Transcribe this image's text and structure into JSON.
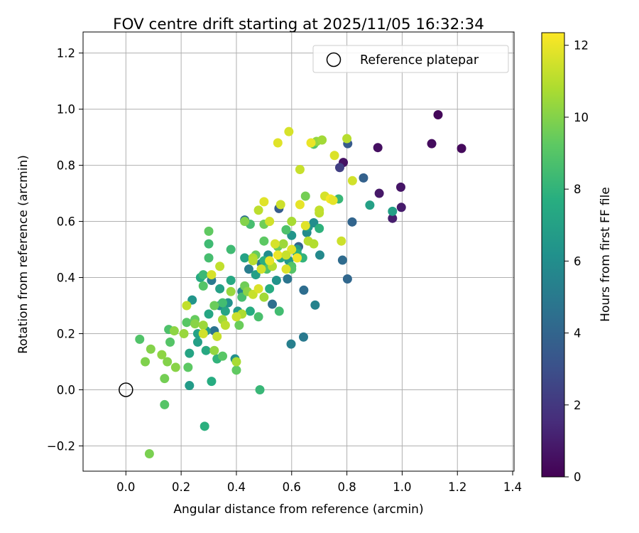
{
  "chart_data": {
    "type": "scatter",
    "title": "FOV centre drift starting at 2025/11/05 16:32:34",
    "xlabel": "Angular distance from reference (arcmin)",
    "ylabel": "Rotation from reference (arcmin)",
    "xlim": [
      -0.155,
      1.405
    ],
    "ylim": [
      -0.29,
      1.275
    ],
    "xticks": [
      0.0,
      0.2,
      0.4,
      0.6,
      0.8,
      1.0,
      1.2,
      1.4
    ],
    "xtick_labels": [
      "0.0",
      "0.2",
      "0.4",
      "0.6",
      "0.8",
      "1.0",
      "1.2",
      "1.4"
    ],
    "yticks": [
      -0.2,
      0.0,
      0.2,
      0.4,
      0.6,
      0.8,
      1.0,
      1.2
    ],
    "ytick_labels": [
      "−0.2",
      "0.0",
      "0.2",
      "0.4",
      "0.6",
      "0.8",
      "1.0",
      "1.2"
    ],
    "grid": true,
    "legend": {
      "position": "top-right",
      "entries": [
        "Reference platepar"
      ]
    },
    "reference": {
      "x": 0.0,
      "y": 0.0,
      "label": "Reference platepar"
    },
    "colorbar": {
      "label": "Hours from first FF file",
      "range": [
        0,
        12.35
      ],
      "ticks": [
        0,
        2,
        4,
        6,
        8,
        10,
        12
      ],
      "tick_labels": [
        "0",
        "2",
        "4",
        "6",
        "8",
        "10",
        "12"
      ],
      "colormap": "viridis"
    },
    "points": [
      [
        1.13,
        0.98,
        0.2
      ],
      [
        1.215,
        0.86,
        0.3
      ],
      [
        1.107,
        0.877,
        0.4
      ],
      [
        0.912,
        0.863,
        0.5
      ],
      [
        0.787,
        0.81,
        0.6
      ],
      [
        0.995,
        0.722,
        0.7
      ],
      [
        0.917,
        0.7,
        0.8
      ],
      [
        0.997,
        0.65,
        0.9
      ],
      [
        0.965,
        0.611,
        1.0
      ],
      [
        0.774,
        0.792,
        2.3
      ],
      [
        0.803,
        0.877,
        3.5
      ],
      [
        0.86,
        0.755,
        3.8
      ],
      [
        0.819,
        0.598,
        4.0
      ],
      [
        0.802,
        0.395,
        4.1
      ],
      [
        0.784,
        0.462,
        4.3
      ],
      [
        0.644,
        0.355,
        4.4
      ],
      [
        0.643,
        0.188,
        5.0
      ],
      [
        0.598,
        0.163,
        5.3
      ],
      [
        0.685,
        0.302,
        5.5
      ],
      [
        0.702,
        0.48,
        5.8
      ],
      [
        0.655,
        0.56,
        5.9
      ],
      [
        0.554,
        0.646,
        3.6
      ],
      [
        0.625,
        0.51,
        4.0
      ],
      [
        0.585,
        0.395,
        4.8
      ],
      [
        0.53,
        0.305,
        4.5
      ],
      [
        0.49,
        0.45,
        4.9
      ],
      [
        0.43,
        0.605,
        4.6
      ],
      [
        0.445,
        0.43,
        5.2
      ],
      [
        0.42,
        0.35,
        5.6
      ],
      [
        0.395,
        0.11,
        6.1
      ],
      [
        0.32,
        0.21,
        4.7
      ],
      [
        0.31,
        0.39,
        5.0
      ],
      [
        0.34,
        0.3,
        5.9
      ],
      [
        0.37,
        0.31,
        6.2
      ],
      [
        0.405,
        0.28,
        6.6
      ],
      [
        0.515,
        0.48,
        6.0
      ],
      [
        0.545,
        0.39,
        6.3
      ],
      [
        0.6,
        0.55,
        6.4
      ],
      [
        0.66,
        0.58,
        6.6
      ],
      [
        0.68,
        0.595,
        6.0
      ],
      [
        0.59,
        0.46,
        6.5
      ],
      [
        0.62,
        0.5,
        6.7
      ],
      [
        0.965,
        0.636,
        6.9
      ],
      [
        0.883,
        0.658,
        7.0
      ],
      [
        0.24,
        0.32,
        6.4
      ],
      [
        0.23,
        0.015,
        6.7
      ],
      [
        0.26,
        0.17,
        6.9
      ],
      [
        0.26,
        0.2,
        7.1
      ],
      [
        0.23,
        0.13,
        7.2
      ],
      [
        0.29,
        0.21,
        6.8
      ],
      [
        0.29,
        0.14,
        7.4
      ],
      [
        0.31,
        0.03,
        7.6
      ],
      [
        0.3,
        0.27,
        7.3
      ],
      [
        0.27,
        0.4,
        7.5
      ],
      [
        0.34,
        0.36,
        7.0
      ],
      [
        0.36,
        0.28,
        7.2
      ],
      [
        0.38,
        0.39,
        7.4
      ],
      [
        0.43,
        0.47,
        7.1
      ],
      [
        0.45,
        0.28,
        7.6
      ],
      [
        0.47,
        0.41,
        6.9
      ],
      [
        0.5,
        0.46,
        7.8
      ],
      [
        0.52,
        0.36,
        7.6
      ],
      [
        0.56,
        0.47,
        7.2
      ],
      [
        0.58,
        0.57,
        7.5
      ],
      [
        0.62,
        0.485,
        7.8
      ],
      [
        0.64,
        0.47,
        8.0
      ],
      [
        0.7,
        0.575,
        7.9
      ],
      [
        0.77,
        0.68,
        8.2
      ],
      [
        0.285,
        -0.13,
        7.8
      ],
      [
        0.485,
        0.0,
        8.2
      ],
      [
        0.33,
        0.11,
        8.0
      ],
      [
        0.3,
        0.52,
        8.4
      ],
      [
        0.3,
        0.47,
        8.6
      ],
      [
        0.28,
        0.41,
        8.3
      ],
      [
        0.35,
        0.31,
        8.5
      ],
      [
        0.38,
        0.5,
        8.4
      ],
      [
        0.42,
        0.33,
        8.6
      ],
      [
        0.45,
        0.59,
        8.6
      ],
      [
        0.48,
        0.26,
        8.7
      ],
      [
        0.51,
        0.43,
        8.8
      ],
      [
        0.555,
        0.28,
        8.5
      ],
      [
        0.58,
        0.57,
        8.8
      ],
      [
        0.6,
        0.44,
        8.9
      ],
      [
        0.05,
        0.18,
        8.9
      ],
      [
        0.14,
        -0.053,
        9.0
      ],
      [
        0.155,
        0.215,
        8.8
      ],
      [
        0.16,
        0.17,
        9.0
      ],
      [
        0.22,
        0.24,
        9.1
      ],
      [
        0.225,
        0.08,
        9.2
      ],
      [
        0.25,
        0.25,
        9.4
      ],
      [
        0.28,
        0.37,
        9.0
      ],
      [
        0.3,
        0.565,
        9.3
      ],
      [
        0.32,
        0.3,
        9.5
      ],
      [
        0.35,
        0.12,
        9.1
      ],
      [
        0.4,
        0.07,
        9.3
      ],
      [
        0.41,
        0.23,
        9.5
      ],
      [
        0.43,
        0.37,
        9.6
      ],
      [
        0.47,
        0.48,
        9.4
      ],
      [
        0.5,
        0.53,
        9.2
      ],
      [
        0.5,
        0.59,
        9.6
      ],
      [
        0.55,
        0.51,
        9.5
      ],
      [
        0.6,
        0.43,
        9.0
      ],
      [
        0.65,
        0.69,
        9.7
      ],
      [
        0.68,
        0.875,
        9.0
      ],
      [
        0.69,
        0.885,
        10.3
      ],
      [
        0.085,
        -0.228,
        9.8
      ],
      [
        0.07,
        0.1,
        9.9
      ],
      [
        0.14,
        0.04,
        9.7
      ],
      [
        0.15,
        0.1,
        10.0
      ],
      [
        0.18,
        0.08,
        10.1
      ],
      [
        0.13,
        0.125,
        10.2
      ],
      [
        0.09,
        0.145,
        10.0
      ],
      [
        0.175,
        0.21,
        10.2
      ],
      [
        0.21,
        0.2,
        10.4
      ],
      [
        0.25,
        0.235,
        10.1
      ],
      [
        0.28,
        0.23,
        10.5
      ],
      [
        0.32,
        0.14,
        10.3
      ],
      [
        0.35,
        0.25,
        10.6
      ],
      [
        0.38,
        0.35,
        10.4
      ],
      [
        0.4,
        0.1,
        10.7
      ],
      [
        0.42,
        0.27,
        10.8
      ],
      [
        0.44,
        0.35,
        10.1
      ],
      [
        0.46,
        0.47,
        10.8
      ],
      [
        0.5,
        0.33,
        10.6
      ],
      [
        0.53,
        0.44,
        10.9
      ],
      [
        0.57,
        0.52,
        10.5
      ],
      [
        0.6,
        0.6,
        10.7
      ],
      [
        0.66,
        0.53,
        11.0
      ],
      [
        0.68,
        0.52,
        10.9
      ],
      [
        0.7,
        0.63,
        11.1
      ],
      [
        0.34,
        0.44,
        11.2
      ],
      [
        0.33,
        0.19,
        11.3
      ],
      [
        0.36,
        0.23,
        11.1
      ],
      [
        0.4,
        0.26,
        11.4
      ],
      [
        0.22,
        0.3,
        11.2
      ],
      [
        0.28,
        0.2,
        11.5
      ],
      [
        0.31,
        0.41,
        11.6
      ],
      [
        0.46,
        0.34,
        11.3
      ],
      [
        0.48,
        0.36,
        11.7
      ],
      [
        0.49,
        0.43,
        11.5
      ],
      [
        0.5,
        0.67,
        11.8
      ],
      [
        0.52,
        0.46,
        11.9
      ],
      [
        0.54,
        0.52,
        11.6
      ],
      [
        0.55,
        0.48,
        12.0
      ],
      [
        0.56,
        0.66,
        11.4
      ],
      [
        0.58,
        0.43,
        11.7
      ],
      [
        0.6,
        0.5,
        11.8
      ],
      [
        0.62,
        0.47,
        12.1
      ],
      [
        0.63,
        0.66,
        11.9
      ],
      [
        0.63,
        0.785,
        11.3
      ],
      [
        0.65,
        0.585,
        11.8
      ],
      [
        0.67,
        0.88,
        12.0
      ],
      [
        0.7,
        0.64,
        11.2
      ],
      [
        0.72,
        0.69,
        11.6
      ],
      [
        0.74,
        0.68,
        12.2
      ],
      [
        0.75,
        0.675,
        11.9
      ],
      [
        0.755,
        0.835,
        11.7
      ],
      [
        0.78,
        0.53,
        11.4
      ],
      [
        0.82,
        0.745,
        11.5
      ],
      [
        0.8,
        0.895,
        11.0
      ],
      [
        0.55,
        0.88,
        11.8
      ],
      [
        0.59,
        0.92,
        11.6
      ],
      [
        0.71,
        0.89,
        10.6
      ],
      [
        0.43,
        0.6,
        10.0
      ],
      [
        0.46,
        0.46,
        11.0
      ],
      [
        0.48,
        0.64,
        11.1
      ],
      [
        0.52,
        0.6,
        11.5
      ],
      [
        0.58,
        0.48,
        11.3
      ]
    ]
  }
}
